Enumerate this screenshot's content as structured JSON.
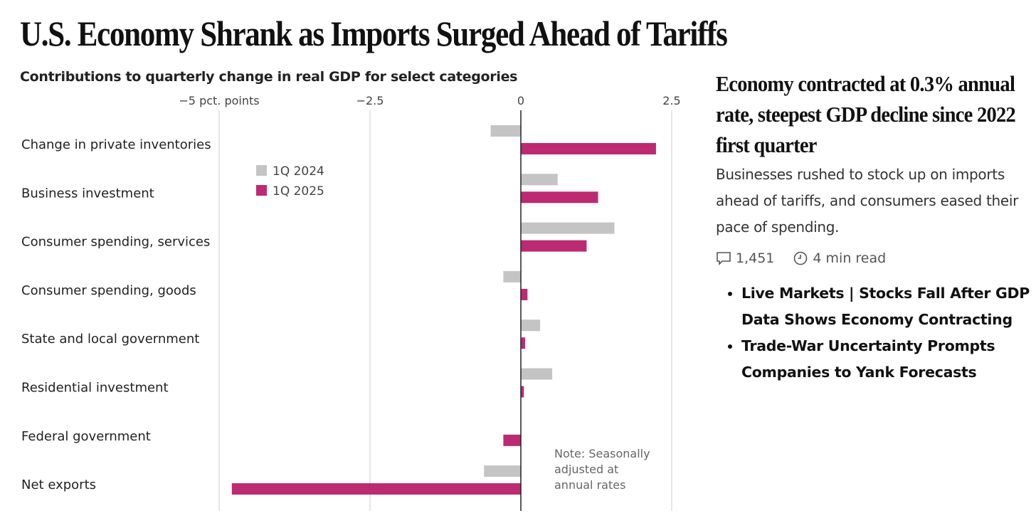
{
  "title": "U.S. Economy Shrank as Imports Surged Ahead of Tariffs",
  "article": {
    "headline": "Economy contracted at 0.3% annual rate, steepest GDP decline since 2022 first quarter",
    "dek": "Businesses rushed to stock up on imports ahead of tariffs, and consumers eased their pace of spending.",
    "comments": "1,451",
    "read_time": "4 min read",
    "related": [
      "Live Markets | Stocks Fall After GDP Data Shows Economy Contracting",
      "Trade-War Uncertainty Prompts Companies to Yank Forecasts"
    ]
  },
  "chart_data": {
    "type": "bar",
    "orientation": "horizontal",
    "title": "Contributions to quarterly change in real GDP for select categories",
    "xlabel": "pct. points",
    "xlim": [
      -5,
      2.5
    ],
    "ticks": [
      {
        "value": -5,
        "label": "−5 pct. points"
      },
      {
        "value": -2.5,
        "label": "−2.5"
      },
      {
        "value": 0,
        "label": "0"
      },
      {
        "value": 2.5,
        "label": "2.5"
      }
    ],
    "categories": [
      "Change in private inventories",
      "Business investment",
      "Consumer spending, services",
      "Consumer spending, goods",
      "State and local government",
      "Residential investment",
      "Federal government",
      "Net exports"
    ],
    "series": [
      {
        "name": "1Q 2024",
        "color": "#c4c4c4",
        "values": [
          -0.5,
          0.61,
          1.55,
          -0.29,
          0.32,
          0.52,
          0.0,
          -0.61
        ]
      },
      {
        "name": "1Q 2025",
        "color": "#bc2a72",
        "values": [
          2.24,
          1.28,
          1.09,
          0.11,
          0.07,
          0.05,
          -0.29,
          -4.79
        ]
      }
    ],
    "legend_position": "top-left",
    "note": [
      "Note: Seasonally",
      "adjusted at",
      "annual rates"
    ]
  }
}
